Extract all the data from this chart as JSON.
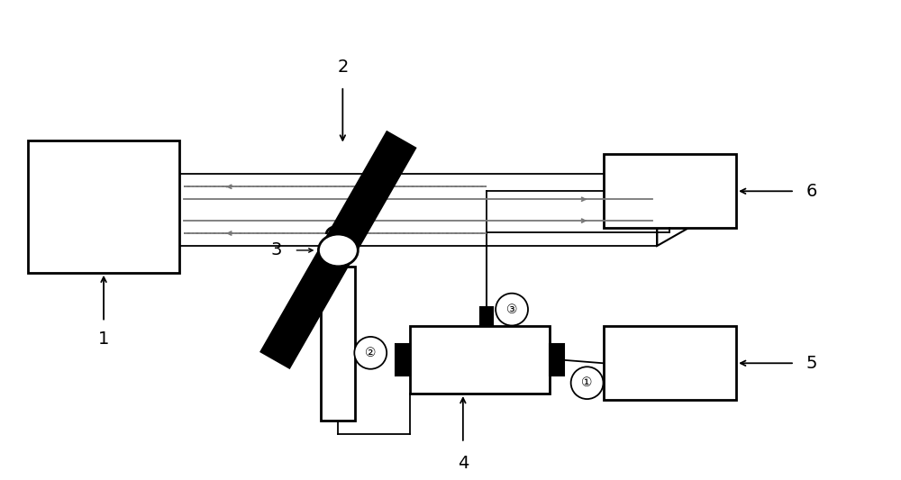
{
  "bg_color": "#ffffff",
  "line_color": "#000000",
  "gray_color": "#777777",
  "light_gray": "#999999"
}
